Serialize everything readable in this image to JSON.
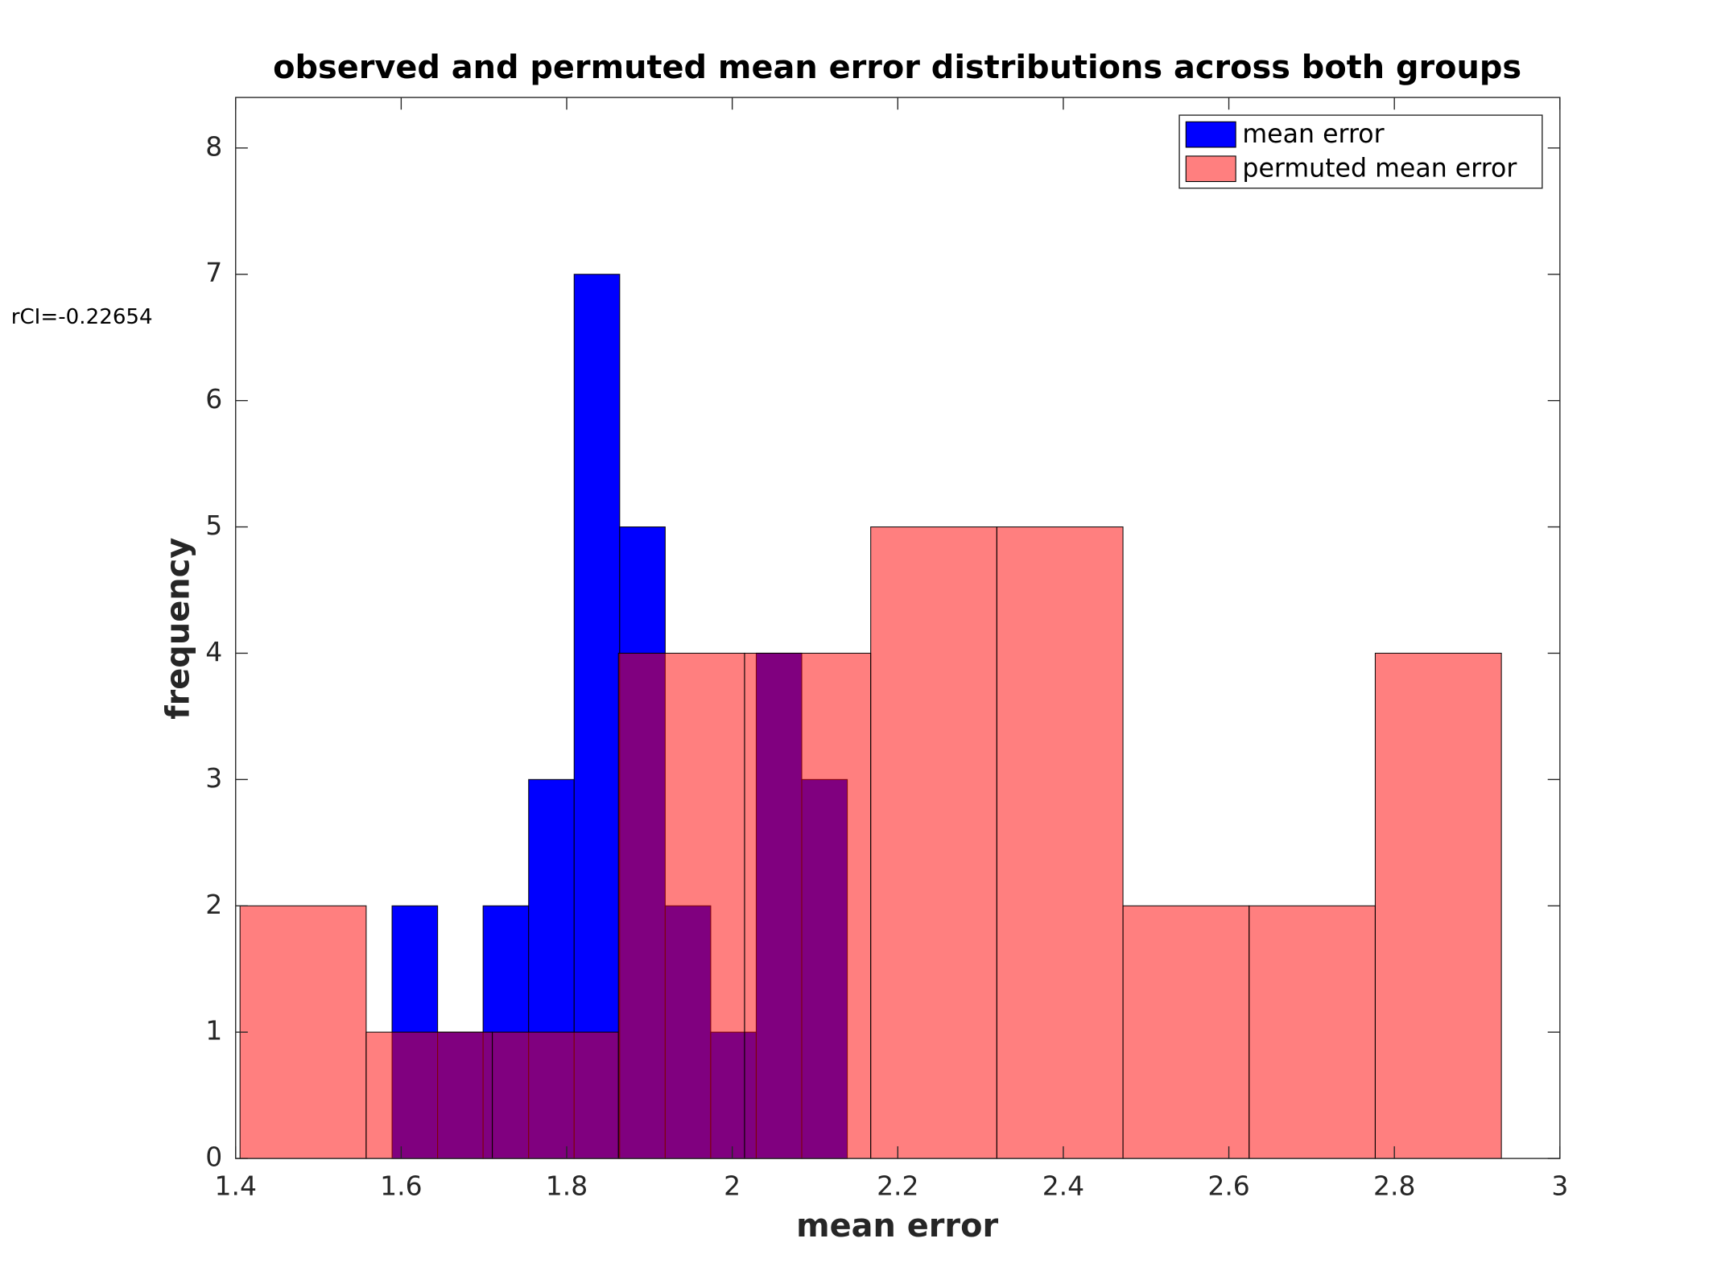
{
  "chart_data": {
    "type": "histogram",
    "title": "observed and permuted mean error distributions across both groups",
    "xlabel": "mean error",
    "ylabel": "frequency",
    "annotation": "rCI=-0.22654",
    "xlim": [
      1.4,
      3
    ],
    "ylim": [
      0,
      8.4
    ],
    "xticks": [
      1.4,
      1.6,
      1.8,
      2,
      2.2,
      2.4,
      2.6,
      2.8,
      3
    ],
    "yticks": [
      0,
      1,
      2,
      3,
      4,
      5,
      6,
      7,
      8
    ],
    "legend": "northeast",
    "series": [
      {
        "name": "mean error",
        "color": "#0000ff",
        "alpha": 1,
        "bins": [
          1.589,
          1.644,
          1.699,
          1.754,
          1.809,
          1.864,
          1.919,
          1.974,
          2.029,
          2.084,
          2.139
        ],
        "values": [
          2,
          1,
          2,
          3,
          7,
          5,
          2,
          1,
          4,
          3
        ]
      },
      {
        "name": "permuted mean error",
        "color": "#ff0000",
        "alpha": 0.5,
        "bins": [
          1.4053,
          1.5577,
          1.7101,
          1.8625,
          2.0149,
          2.1673,
          2.3197,
          2.4721,
          2.6245,
          2.7769,
          2.9293
        ],
        "values": [
          2,
          1,
          1,
          4,
          4,
          5,
          5,
          2,
          2,
          4
        ]
      }
    ]
  }
}
